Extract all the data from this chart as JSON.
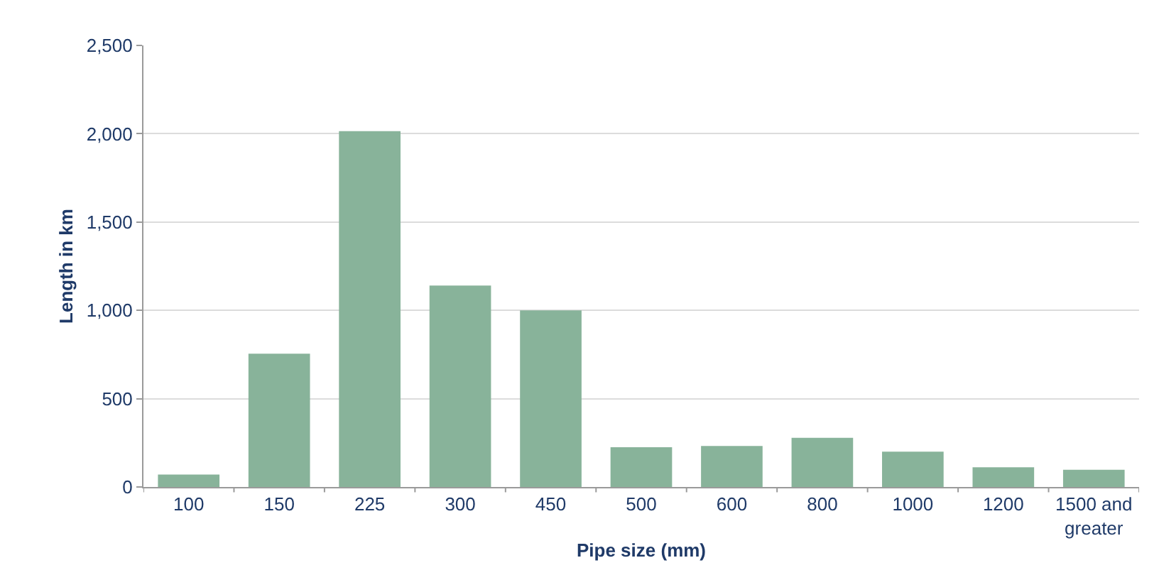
{
  "chart_data": {
    "type": "bar",
    "xlabel": "Pipe size (mm)",
    "ylabel": "Length in km",
    "categories": [
      "100",
      "150",
      "225",
      "300",
      "450",
      "500",
      "600",
      "800",
      "1000",
      "1200",
      "1500 and greater"
    ],
    "values": [
      70,
      755,
      2015,
      1140,
      1000,
      225,
      232,
      278,
      200,
      112,
      97
    ],
    "color": "#88b39a",
    "ylim": [
      0,
      2500
    ],
    "yticks": [
      {
        "value": 0,
        "label": "0"
      },
      {
        "value": 500,
        "label": "500"
      },
      {
        "value": 1000,
        "label": "1,000"
      },
      {
        "value": 1500,
        "label": "1,500"
      },
      {
        "value": 2000,
        "label": "2,000"
      },
      {
        "value": 2500,
        "label": "2,500"
      }
    ],
    "grid": "y"
  }
}
